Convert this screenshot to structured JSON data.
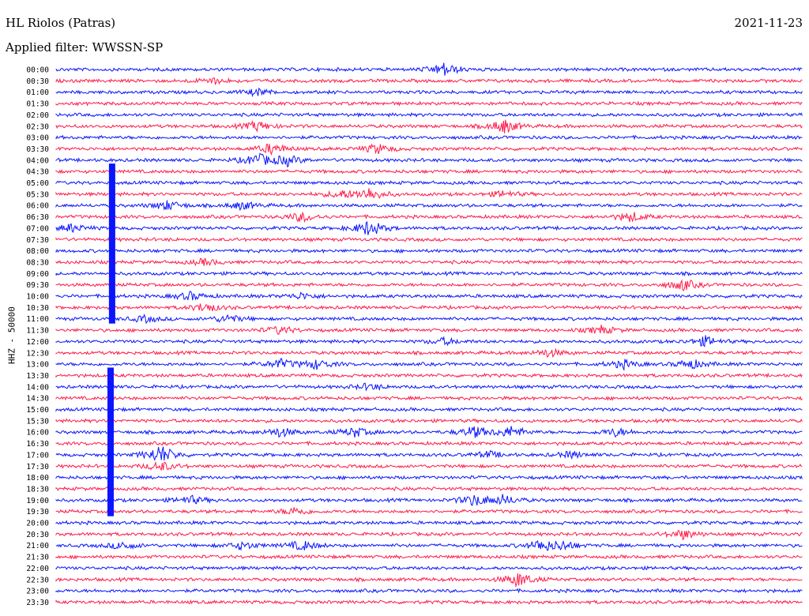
{
  "header": {
    "station": "HL Riolos (Patras)",
    "date": "2021-11-23",
    "filter_text": "Applied filter: WWSSN-SP"
  },
  "colors": {
    "even": "#0a14ff",
    "odd": "#ff1a4a"
  },
  "chart_data": {
    "type": "line",
    "subtype": "helicorder",
    "title": "HL Riolos (Patras)",
    "ylabel": "HHZ - 50000",
    "row_labels": [
      "00:00",
      "00:30",
      "01:00",
      "01:30",
      "02:00",
      "02:30",
      "03:00",
      "03:30",
      "04:00",
      "04:30",
      "05:00",
      "05:30",
      "06:00",
      "06:30",
      "07:00",
      "07:30",
      "08:00",
      "08:30",
      "09:00",
      "09:30",
      "10:00",
      "10:30",
      "11:00",
      "11:30",
      "12:00",
      "12:30",
      "13:00",
      "13:30",
      "14:00",
      "14:30",
      "15:00",
      "15:30",
      "16:00",
      "16:30",
      "17:00",
      "17:30",
      "18:00",
      "18:30",
      "19:00",
      "19:30",
      "20:00",
      "20:30",
      "21:00",
      "21:30",
      "22:00",
      "22:30",
      "23:00",
      "23:30"
    ],
    "row_minutes": 30,
    "bursts": [
      {
        "row": 0,
        "t": 0.52,
        "amp": 8
      },
      {
        "row": 1,
        "t": 0.21,
        "amp": 4
      },
      {
        "row": 2,
        "t": 0.27,
        "amp": 4
      },
      {
        "row": 5,
        "t": 0.27,
        "amp": 6
      },
      {
        "row": 5,
        "t": 0.6,
        "amp": 9
      },
      {
        "row": 7,
        "t": 0.29,
        "amp": 7
      },
      {
        "row": 7,
        "t": 0.43,
        "amp": 6
      },
      {
        "row": 8,
        "t": 0.27,
        "amp": 8
      },
      {
        "row": 8,
        "t": 0.31,
        "amp": 6
      },
      {
        "row": 11,
        "t": 0.38,
        "amp": 5
      },
      {
        "row": 11,
        "t": 0.42,
        "amp": 8
      },
      {
        "row": 11,
        "t": 0.6,
        "amp": 4
      },
      {
        "row": 12,
        "t": 0.15,
        "amp": 6
      },
      {
        "row": 12,
        "t": 0.25,
        "amp": 5
      },
      {
        "row": 13,
        "t": 0.33,
        "amp": 6
      },
      {
        "row": 13,
        "t": 0.77,
        "amp": 6
      },
      {
        "row": 14,
        "t": 0.42,
        "amp": 10
      },
      {
        "row": 14,
        "t": 0.02,
        "amp": 5
      },
      {
        "row": 17,
        "t": 0.2,
        "amp": 4
      },
      {
        "row": 19,
        "t": 0.84,
        "amp": 7
      },
      {
        "row": 20,
        "t": 0.18,
        "amp": 5
      },
      {
        "row": 20,
        "t": 0.33,
        "amp": 4
      },
      {
        "row": 21,
        "t": 0.2,
        "amp": 6
      },
      {
        "row": 22,
        "t": 0.12,
        "amp": 4
      },
      {
        "row": 22,
        "t": 0.23,
        "amp": 5
      },
      {
        "row": 23,
        "t": 0.3,
        "amp": 5
      },
      {
        "row": 23,
        "t": 0.73,
        "amp": 5
      },
      {
        "row": 24,
        "t": 0.52,
        "amp": 4
      },
      {
        "row": 24,
        "t": 0.87,
        "amp": 6
      },
      {
        "row": 25,
        "t": 0.66,
        "amp": 5
      },
      {
        "row": 26,
        "t": 0.3,
        "amp": 6
      },
      {
        "row": 26,
        "t": 0.35,
        "amp": 6
      },
      {
        "row": 26,
        "t": 0.76,
        "amp": 5
      },
      {
        "row": 26,
        "t": 0.85,
        "amp": 6
      },
      {
        "row": 28,
        "t": 0.42,
        "amp": 4
      },
      {
        "row": 32,
        "t": 0.3,
        "amp": 6
      },
      {
        "row": 32,
        "t": 0.4,
        "amp": 6
      },
      {
        "row": 32,
        "t": 0.56,
        "amp": 7
      },
      {
        "row": 32,
        "t": 0.61,
        "amp": 7
      },
      {
        "row": 32,
        "t": 0.75,
        "amp": 5
      },
      {
        "row": 34,
        "t": 0.14,
        "amp": 12
      },
      {
        "row": 34,
        "t": 0.58,
        "amp": 4
      },
      {
        "row": 34,
        "t": 0.69,
        "amp": 4
      },
      {
        "row": 35,
        "t": 0.14,
        "amp": 6
      },
      {
        "row": 38,
        "t": 0.18,
        "amp": 5
      },
      {
        "row": 38,
        "t": 0.56,
        "amp": 7
      },
      {
        "row": 38,
        "t": 0.6,
        "amp": 6
      },
      {
        "row": 39,
        "t": 0.32,
        "amp": 5
      },
      {
        "row": 41,
        "t": 0.84,
        "amp": 6
      },
      {
        "row": 42,
        "t": 0.09,
        "amp": 5
      },
      {
        "row": 42,
        "t": 0.25,
        "amp": 5
      },
      {
        "row": 42,
        "t": 0.33,
        "amp": 6
      },
      {
        "row": 42,
        "t": 0.65,
        "amp": 7
      },
      {
        "row": 42,
        "t": 0.68,
        "amp": 5
      },
      {
        "row": 45,
        "t": 0.62,
        "amp": 9
      }
    ],
    "big_events": [
      {
        "row_start": 9,
        "row_end": 22,
        "t": 0.075
      },
      {
        "row_start": 27,
        "row_end": 39,
        "t": 0.073
      }
    ]
  }
}
